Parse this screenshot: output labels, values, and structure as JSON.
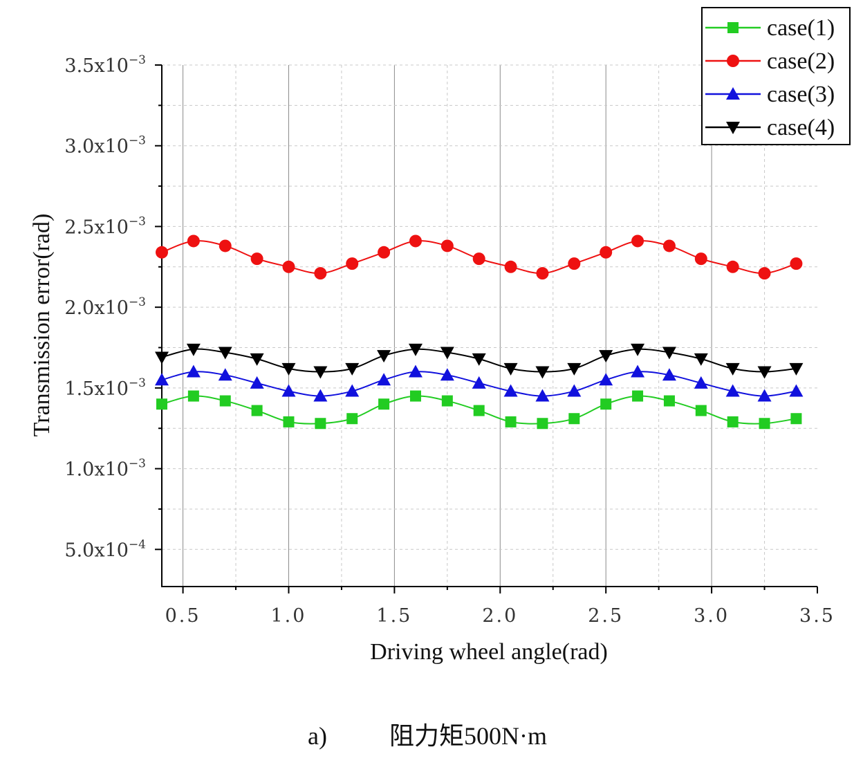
{
  "chart_data": {
    "type": "line",
    "xlabel": "Driving wheel angle(rad)",
    "ylabel": "Transmission error(rad)",
    "xlim": [
      0.4,
      3.5
    ],
    "ylim": [
      0.00027,
      0.0035
    ],
    "x_ticks": [
      {
        "value": 0.5,
        "label": "0.5"
      },
      {
        "value": 1.0,
        "label": "1.0"
      },
      {
        "value": 1.5,
        "label": "1.5"
      },
      {
        "value": 2.0,
        "label": "2.0"
      },
      {
        "value": 2.5,
        "label": "2.5"
      },
      {
        "value": 3.0,
        "label": "3.0"
      },
      {
        "value": 3.5,
        "label": "3.5"
      }
    ],
    "y_ticks": [
      {
        "value": 0.0005,
        "mantissa": "5.0x10",
        "exp": "−4"
      },
      {
        "value": 0.001,
        "mantissa": "1.0x10",
        "exp": "−3"
      },
      {
        "value": 0.0015,
        "mantissa": "1.5x10",
        "exp": "−3"
      },
      {
        "value": 0.002,
        "mantissa": "2.0x10",
        "exp": "−3"
      },
      {
        "value": 0.0025,
        "mantissa": "2.5x10",
        "exp": "−3"
      },
      {
        "value": 0.003,
        "mantissa": "3.0x10",
        "exp": "−3"
      },
      {
        "value": 0.0035,
        "mantissa": "3.5x10",
        "exp": "−3"
      }
    ],
    "grid": true,
    "legend_position": "top-right",
    "x": [
      0.4,
      0.55,
      0.7,
      0.85,
      1.0,
      1.15,
      1.3,
      1.45,
      1.6,
      1.75,
      1.9,
      2.05,
      2.2,
      2.35,
      2.5,
      2.65,
      2.8,
      2.95,
      3.1,
      3.25,
      3.4
    ],
    "series": [
      {
        "name": "case(1)",
        "color": "#22cc22",
        "marker": "square",
        "values": [
          0.0014,
          0.00145,
          0.00142,
          0.00136,
          0.00129,
          0.00128,
          0.00131,
          0.0014,
          0.00145,
          0.00142,
          0.00136,
          0.00129,
          0.00128,
          0.00131,
          0.0014,
          0.00145,
          0.00142,
          0.00136,
          0.00129,
          0.00128,
          0.00131
        ]
      },
      {
        "name": "case(2)",
        "color": "#ee1111",
        "marker": "circle",
        "values": [
          0.00234,
          0.00241,
          0.00238,
          0.0023,
          0.00225,
          0.00221,
          0.00227,
          0.00234,
          0.00241,
          0.00238,
          0.0023,
          0.00225,
          0.00221,
          0.00227,
          0.00234,
          0.00241,
          0.00238,
          0.0023,
          0.00225,
          0.00221,
          0.00227
        ]
      },
      {
        "name": "case(3)",
        "color": "#1111dd",
        "marker": "triangle-up",
        "values": [
          0.00155,
          0.0016,
          0.00158,
          0.00153,
          0.00148,
          0.00145,
          0.00148,
          0.00155,
          0.0016,
          0.00158,
          0.00153,
          0.00148,
          0.00145,
          0.00148,
          0.00155,
          0.0016,
          0.00158,
          0.00153,
          0.00148,
          0.00145,
          0.00148
        ]
      },
      {
        "name": "case(4)",
        "color": "#000000",
        "marker": "triangle-down",
        "values": [
          0.00169,
          0.00174,
          0.00172,
          0.00168,
          0.00162,
          0.0016,
          0.00162,
          0.0017,
          0.00174,
          0.00172,
          0.00168,
          0.00162,
          0.0016,
          0.00162,
          0.0017,
          0.00174,
          0.00172,
          0.00168,
          0.00162,
          0.0016,
          0.00162
        ]
      }
    ],
    "caption": {
      "label": "a)",
      "text": "阻力矩500N·m"
    }
  }
}
